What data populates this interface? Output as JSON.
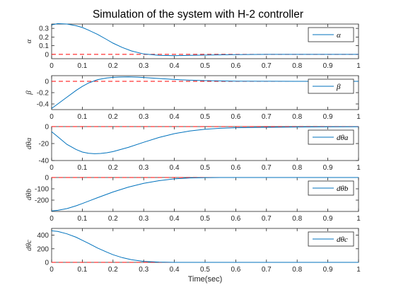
{
  "title": "Simulation of the system with H-2 controller",
  "xlabel": "Time(sec)",
  "colors": {
    "series": "#0072BD",
    "reference": "#FF0000",
    "axes": "#262626",
    "grid": "none"
  },
  "chart_data": [
    {
      "type": "line",
      "ylabel": "α",
      "legend": "α",
      "legend_position": "top-right",
      "xlim": [
        0,
        1
      ],
      "ylim": [
        -0.05,
        0.35
      ],
      "yticks": [
        0,
        0.1,
        0.2,
        0.3
      ],
      "ytick_labels": [
        "0",
        "0.1",
        "0.2",
        "0.3"
      ],
      "xticks": [
        0,
        0.1,
        0.2,
        0.3,
        0.4,
        0.5,
        0.6,
        0.7,
        0.8,
        0.9,
        1
      ],
      "xtick_labels": [
        "0",
        "0.1",
        "0.2",
        "0.3",
        "0.4",
        "0.5",
        "0.6",
        "0.7",
        "0.8",
        "0.9",
        "1"
      ],
      "reference": 0,
      "series": [
        {
          "x": [
            0,
            0.02,
            0.05,
            0.08,
            0.1,
            0.12,
            0.15,
            0.18,
            0.2,
            0.23,
            0.26,
            0.3,
            0.35,
            0.4,
            0.45,
            0.5,
            0.6,
            0.7,
            0.8,
            0.9,
            1.0
          ],
          "values": [
            0.34,
            0.355,
            0.35,
            0.33,
            0.31,
            0.28,
            0.23,
            0.17,
            0.13,
            0.08,
            0.04,
            0.005,
            -0.012,
            -0.015,
            -0.012,
            -0.008,
            -0.003,
            0,
            0,
            0,
            0
          ]
        }
      ]
    },
    {
      "type": "line",
      "ylabel": "β",
      "legend": "β",
      "legend_position": "top-right",
      "xlim": [
        0,
        1
      ],
      "ylim": [
        -0.5,
        0.1
      ],
      "yticks": [
        -0.4,
        -0.2,
        0
      ],
      "ytick_labels": [
        "-0.4",
        "-0.2",
        "0"
      ],
      "xticks": [
        0,
        0.1,
        0.2,
        0.3,
        0.4,
        0.5,
        0.6,
        0.7,
        0.8,
        0.9,
        1
      ],
      "xtick_labels": [
        "0",
        "0.1",
        "0.2",
        "0.3",
        "0.4",
        "0.5",
        "0.6",
        "0.7",
        "0.8",
        "0.9",
        "1"
      ],
      "reference": 0,
      "series": [
        {
          "x": [
            0,
            0.02,
            0.05,
            0.08,
            0.1,
            0.12,
            0.15,
            0.18,
            0.2,
            0.22,
            0.25,
            0.28,
            0.3,
            0.35,
            0.4,
            0.45,
            0.5,
            0.6,
            0.7,
            0.8,
            0.9,
            1.0
          ],
          "values": [
            -0.48,
            -0.4,
            -0.28,
            -0.16,
            -0.09,
            -0.03,
            0.03,
            0.06,
            0.07,
            0.075,
            0.078,
            0.074,
            0.068,
            0.05,
            0.033,
            0.02,
            0.012,
            0.004,
            0.001,
            0,
            0,
            0
          ]
        }
      ]
    },
    {
      "type": "line",
      "ylabel": "dθa",
      "legend": "dθa",
      "legend_position": "top-right",
      "xlim": [
        0,
        1
      ],
      "ylim": [
        -40,
        0
      ],
      "yticks": [
        -40,
        -20,
        0
      ],
      "ytick_labels": [
        "-40",
        "-20",
        "0"
      ],
      "xticks": [
        0,
        0.1,
        0.2,
        0.3,
        0.4,
        0.5,
        0.6,
        0.7,
        0.8,
        0.9,
        1
      ],
      "xtick_labels": [
        "0",
        "0.1",
        "0.2",
        "0.3",
        "0.4",
        "0.5",
        "0.6",
        "0.7",
        "0.8",
        "0.9",
        "1"
      ],
      "reference": 0,
      "series": [
        {
          "x": [
            0,
            0.02,
            0.05,
            0.08,
            0.1,
            0.12,
            0.14,
            0.16,
            0.18,
            0.2,
            0.25,
            0.3,
            0.35,
            0.4,
            0.45,
            0.5,
            0.55,
            0.6,
            0.7,
            0.8,
            0.9,
            1.0
          ],
          "values": [
            -6,
            -12,
            -21,
            -27,
            -30,
            -31.5,
            -32,
            -31.7,
            -30.8,
            -29.5,
            -24.5,
            -18.5,
            -12.8,
            -8.3,
            -5.2,
            -3.2,
            -2,
            -1.3,
            -0.8,
            -0.5,
            -0.3,
            -0.2
          ]
        }
      ]
    },
    {
      "type": "line",
      "ylabel": "dθb",
      "legend": "dθb",
      "legend_position": "top-right",
      "xlim": [
        0,
        1
      ],
      "ylim": [
        -300,
        0
      ],
      "yticks": [
        -200,
        -100,
        0
      ],
      "ytick_labels": [
        "-200",
        "-100",
        "0"
      ],
      "xticks": [
        0,
        0.1,
        0.2,
        0.3,
        0.4,
        0.5,
        0.6,
        0.7,
        0.8,
        0.9,
        1
      ],
      "xtick_labels": [
        "0",
        "0.1",
        "0.2",
        "0.3",
        "0.4",
        "0.5",
        "0.6",
        "0.7",
        "0.8",
        "0.9",
        "1"
      ],
      "reference": 0,
      "series": [
        {
          "x": [
            0,
            0.02,
            0.05,
            0.08,
            0.1,
            0.15,
            0.2,
            0.25,
            0.3,
            0.35,
            0.4,
            0.45,
            0.5,
            0.55,
            0.6,
            0.7,
            0.8,
            0.9,
            1.0
          ],
          "values": [
            -295,
            -290,
            -275,
            -250,
            -230,
            -178,
            -128,
            -85,
            -52,
            -28,
            -12,
            -4,
            -1,
            0,
            0,
            0,
            0,
            0,
            0
          ]
        }
      ]
    },
    {
      "type": "line",
      "ylabel": "dθc",
      "legend": "dθc",
      "legend_position": "top-right",
      "xlim": [
        0,
        1
      ],
      "ylim": [
        0,
        500
      ],
      "yticks": [
        0,
        200,
        400
      ],
      "ytick_labels": [
        "0",
        "200",
        "400"
      ],
      "xticks": [
        0,
        0.1,
        0.2,
        0.3,
        0.4,
        0.5,
        0.6,
        0.7,
        0.8,
        0.9,
        1
      ],
      "xtick_labels": [
        "0",
        "0.1",
        "0.2",
        "0.3",
        "0.4",
        "0.5",
        "0.6",
        "0.7",
        "0.8",
        "0.9",
        "1"
      ],
      "reference": 0,
      "series": [
        {
          "x": [
            0,
            0.02,
            0.05,
            0.08,
            0.1,
            0.12,
            0.15,
            0.18,
            0.2,
            0.23,
            0.26,
            0.3,
            0.35,
            0.4,
            0.45,
            0.5,
            0.6,
            0.7,
            0.8,
            0.9,
            1.0
          ],
          "values": [
            465,
            455,
            420,
            370,
            325,
            280,
            210,
            150,
            112,
            70,
            40,
            15,
            4,
            0,
            0,
            0,
            0,
            0,
            0,
            0,
            0
          ]
        }
      ]
    }
  ]
}
